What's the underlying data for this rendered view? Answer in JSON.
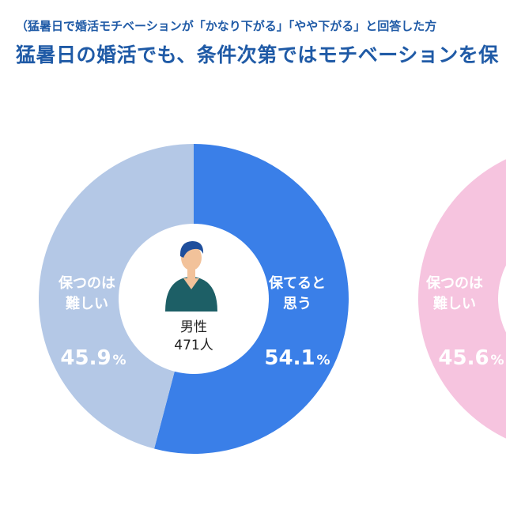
{
  "header": {
    "subtitle": "（猛暑日で婚活モチベーションが「かなり下がる」「やや下がる」と回答した方",
    "title": "猛暑日の婚活でも、条件次第ではモチベーションを保"
  },
  "colors": {
    "male_keep": "#3a7fe8",
    "male_hard": "#b4c8e6",
    "female_hard": "#f6c4df",
    "title": "#1f5aa6"
  },
  "chart_data": [
    {
      "type": "pie",
      "donut": true,
      "center": {
        "label": "男性",
        "count": "471人",
        "icon": "man-avatar-icon"
      },
      "slices": [
        {
          "name": "保てると思う",
          "label_lines": [
            "保てると",
            "思う"
          ],
          "value": 54.1,
          "value_text": "54.1",
          "unit": "%",
          "color": "#3a7fe8"
        },
        {
          "name": "保つのは難しい",
          "label_lines": [
            "保つのは",
            "難しい"
          ],
          "value": 45.9,
          "value_text": "45.9",
          "unit": "%",
          "color": "#b4c8e6"
        }
      ]
    },
    {
      "type": "pie",
      "donut": true,
      "partial": true,
      "slices": [
        {
          "name": "保つのは難しい",
          "label_lines": [
            "保つのは",
            "難しい"
          ],
          "value": 45.6,
          "value_text": "45.6",
          "unit": "%",
          "color": "#f6c4df"
        }
      ]
    }
  ]
}
